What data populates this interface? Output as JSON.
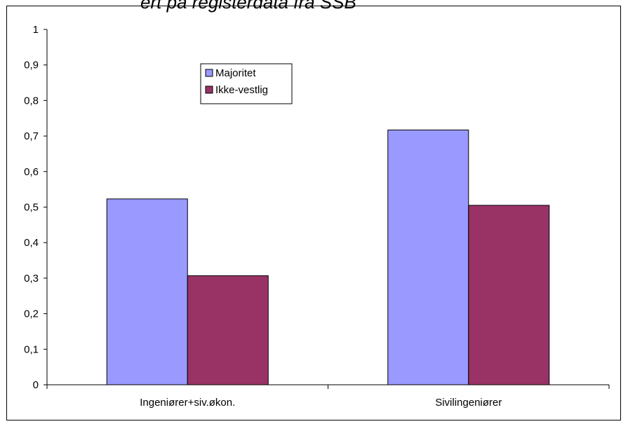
{
  "chart_data": {
    "type": "bar",
    "title": "",
    "xlabel": "",
    "ylabel": "",
    "categories": [
      "Ingeniører+siv.økon.",
      "Sivilingeniører"
    ],
    "series": [
      {
        "name": "Majoritet",
        "color": "#9999ff",
        "values": [
          0.523,
          0.717
        ]
      },
      {
        "name": "Ikke-vestlig",
        "color": "#993366",
        "values": [
          0.307,
          0.505
        ]
      }
    ],
    "ylim": [
      0,
      1
    ],
    "yticks": [
      "0",
      "0,1",
      "0,2",
      "0,3",
      "0,4",
      "0,5",
      "0,6",
      "0,7",
      "0,8",
      "0,9",
      "1"
    ],
    "grid": false,
    "legend_position": "top-left inside plot"
  },
  "title_fragment": "ert på registerdata fra SSB"
}
